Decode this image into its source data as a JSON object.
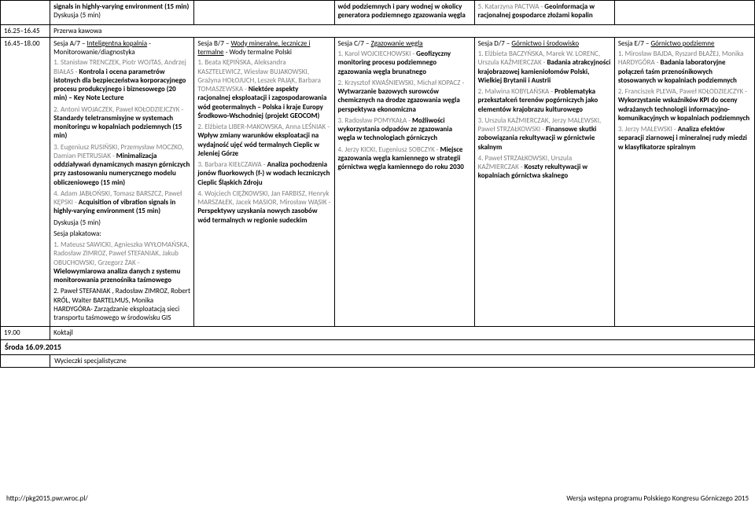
{
  "topRow": {
    "colA": "signals in highly-varying environment (15 min)\nDyskusja (5 min)",
    "colC": "wód podziemnych i pary wodnej w okolicy generatora podziemnego zgazowania węgla",
    "colD": "5. Katarzyna PACTWA - Geoinformacja w racjonalnej gospodarce złożami kopalin"
  },
  "break": {
    "time": "16.25–16.45",
    "label": "Przerwa kawowa"
  },
  "main": {
    "time": "16.45–18.00",
    "colA": {
      "title": "Sesja A/7 – Inteligentna kopalnia - Monitorowanie/diagnostyka",
      "items": [
        "1. Stanisław TRENCZEK, Piotr WOJTAS, Andrzej BIAŁAS - Kontrola i ocena parametrów istotnych dla bezpieczeństwa korporacyjnego procesu produkcyjnego i biznesowego (20 min) – Key Note Lecture",
        "2. Antoni WOJACZEK, Paweł KOŁODZIEJCZYK - Standardy teletransmisyjne w systemach monitoringu w kopalniach podziemnych (15 min)",
        "3. Eugeniusz RUSIŃSKI, Przemysław MOCZKO, Damian PIETRUSIAK - Minimalizacja oddziaływań dynamicznych maszyn górniczych przy zastosowaniu numerycznego modelu obliczeniowego (15 min)",
        "4. Adam JABŁOŃSKI, Tomasz BARSZCZ, Paweł KĘPSKI - Acquisition of vibration signals in highly-varying environment (15 min)",
        "Dyskusja (5 min)"
      ],
      "poster": "Sesja plakatowa:",
      "posterItems": [
        "1. Mateusz SAWICKI, Agnieszka WYŁOMAŃSKA, Radosław ZIMROZ, Paweł STEFANIAK, Jakub OBUCHOWSKI, Grzegorz ŻAK - Wielowymiarowa analiza danych z systemu monitorowania przenośnika taśmowego",
        "2. Paweł STEFANIAK , Radosław ZIMROZ, Robert KRÓL, Walter BARTELMUS, Monika HARDYGÓRA- Zarządzanie eksploatacją sieci transportu taśmowego w środowisku GIS"
      ]
    },
    "colB": {
      "title": "Sesja B/7 – Wody mineralne, lecznicze i termalne - Wody termalne Polski",
      "items": [
        "1. Beata KĘPIŃSKA, Aleksandra KASZTELEWICZ, Wiesław BUJAKOWSKI, Grażyna HOŁOJUCH, Leszek PAJĄK, Barbara TOMASZEWSKA - Niektóre aspekty racjonalnej eksploatacji i zagospodarowania wód geotermalnych – Polska i kraje Europy Środkowo-Wschodniej (projekt GEOCOM)",
        "2. Elżbieta LIBER-MAKOWSKA, Anna LEŚNIAK - Wpływ zmiany warunków eksploatacji na wydajność ujęć wód termalnych Cieplic w Jeleniej Górze",
        "3. Barbara KIEŁCZAWA - Analiza pochodzenia jonów fluorkowych (f-) w wodach leczniczych Cieplic Śląskich Zdroju",
        "4. Wojciech CIĘŻKOWSKI, Jan FARBISZ, Henryk MARSZAŁEK, Jacek MASIOR, Mirosław WĄSIK - Perspektywy uzyskania nowych zasobów wód termalnych w regionie sudeckim"
      ]
    },
    "colC": {
      "title": "Sesja C/7 – Zgazowanie węgla",
      "items": [
        "1. Karol WOJCIECHOWSKI - Geofizyczny monitoring procesu podziemnego zgazowania węgla brunatnego",
        "2. Krzysztof KWAŚNIEWSKI, Michał KOPACZ - Wytwarzanie bazowych surowców chemicznych na drodze zgazowania węgla perspektywa ekonomiczna",
        "3. Radosław POMYKAŁA - Możliwości wykorzystania odpadów ze zgazowania węgla w technologiach górniczych",
        "4. Jerzy KICKI, Eugeniusz SOBCZYK - Miejsce zgazowania węgla kamiennego w strategii górnictwa węgla kamiennego do roku 2030"
      ]
    },
    "colD": {
      "title": "Sesja D/7 – Górnictwo i środowisko",
      "items": [
        "1. Elżbieta BACZYŃSKA, Marek W. LORENC, Urszula KAŹMIERCZAK - Badania atrakcyjności krajobrazowej kamieniołomów Polski, Wielkiej Brytanii i Austrii",
        "2. Malwina KOBYLAŃSKA - Problematyka przekształceń terenów pogórniczych jako elementów krajobrazu kulturowego",
        "3. Urszula KAŹMIERCZAK, Jerzy MALEWSKI, Paweł STRZAŁKOWSKI - Finansowe skutki zobowiązania rekultywacji w górnictwie skalnym",
        "4. Paweł STRZAŁKOWSKI, Urszula KAŹMIERCZAK - Koszty rekultywacji w kopalniach górnictwa skalnego"
      ]
    },
    "colE": {
      "title": "Sesja E/7 – Górnictwo podziemne",
      "items": [
        "1. Mirosław BAJDA, Ryszard BŁAŻEJ, Monika HARDYGÓRA - Badania laboratoryjne połączeń taśm przenośnikowych stosowanych w kopalniach podziemnych",
        "2. Franciszek PLEWA, Paweł KOŁODZIEJCZYK – Wykorzystanie wskaźników KPI do oceny wdrażanych technologii informacyjno-komunikacyjnych w kopalniach podziemnych",
        "3. Jerzy MALEWSKI – Analiza efektów separacji ziarnowej i mineralnej rudy miedzi w klasyfikatorze spiralnym"
      ]
    }
  },
  "koktajl": {
    "time": "19.00",
    "label": "Koktajl"
  },
  "sroda": "Środa  16.09.2015",
  "trip": "Wycieczki specjalistyczne",
  "footer": {
    "left": "http://pkg2015.pwr.wroc.pl/",
    "right": "Wersja wstępna programu Polskiego Kongresu Górniczego 2015"
  }
}
